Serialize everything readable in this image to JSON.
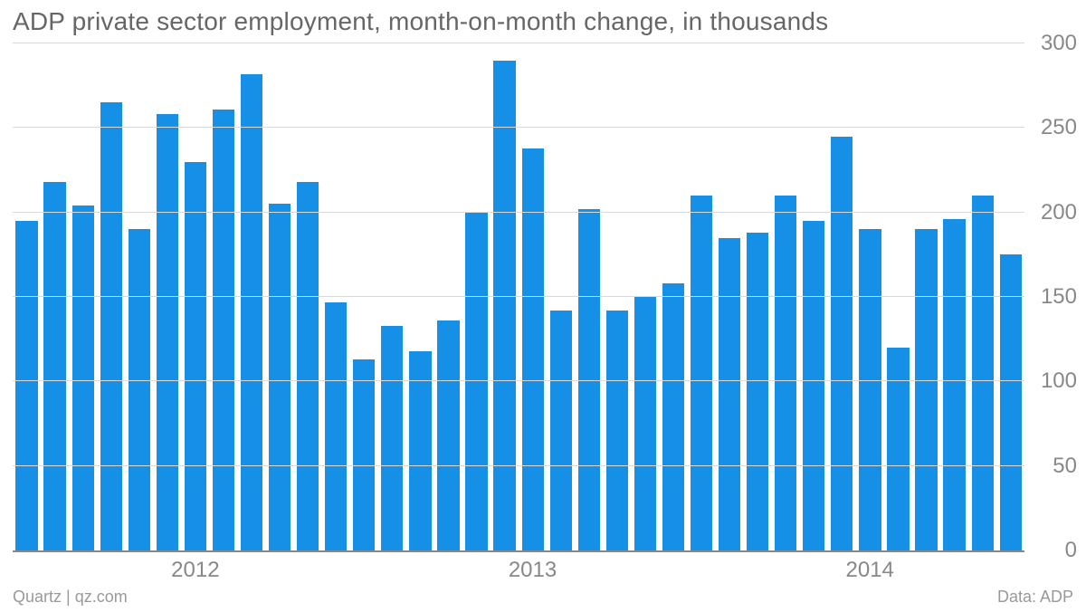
{
  "chart": {
    "type": "bar",
    "title": "ADP private sector employment, month-on-month change, in thousands",
    "title_color": "#666666",
    "title_fontsize": 28,
    "background_color": "#ffffff",
    "bar_color": "#168fe6",
    "bar_width_ratio": 0.78,
    "grid_color": "#d9d9d9",
    "baseline_color": "#888888",
    "y": {
      "min": 0,
      "max": 300,
      "ticks": [
        0,
        50,
        100,
        150,
        200,
        250,
        300
      ],
      "label_color": "#888888",
      "label_fontsize": 24
    },
    "x": {
      "year_labels": [
        {
          "label": "2012",
          "index": 6
        },
        {
          "label": "2013",
          "index": 18
        },
        {
          "label": "2014",
          "index": 30
        }
      ],
      "label_color": "#888888",
      "label_fontsize": 24
    },
    "values": [
      195,
      218,
      204,
      265,
      190,
      258,
      230,
      261,
      282,
      205,
      218,
      147,
      113,
      133,
      118,
      136,
      200,
      290,
      238,
      142,
      202,
      142,
      150,
      158,
      210,
      185,
      188,
      210,
      195,
      245,
      190,
      120,
      190,
      196,
      210,
      175
    ],
    "footer_left": "Quartz | qz.com",
    "footer_right": "Data: ADP",
    "footer_color": "#999999",
    "footer_fontsize": 18
  }
}
